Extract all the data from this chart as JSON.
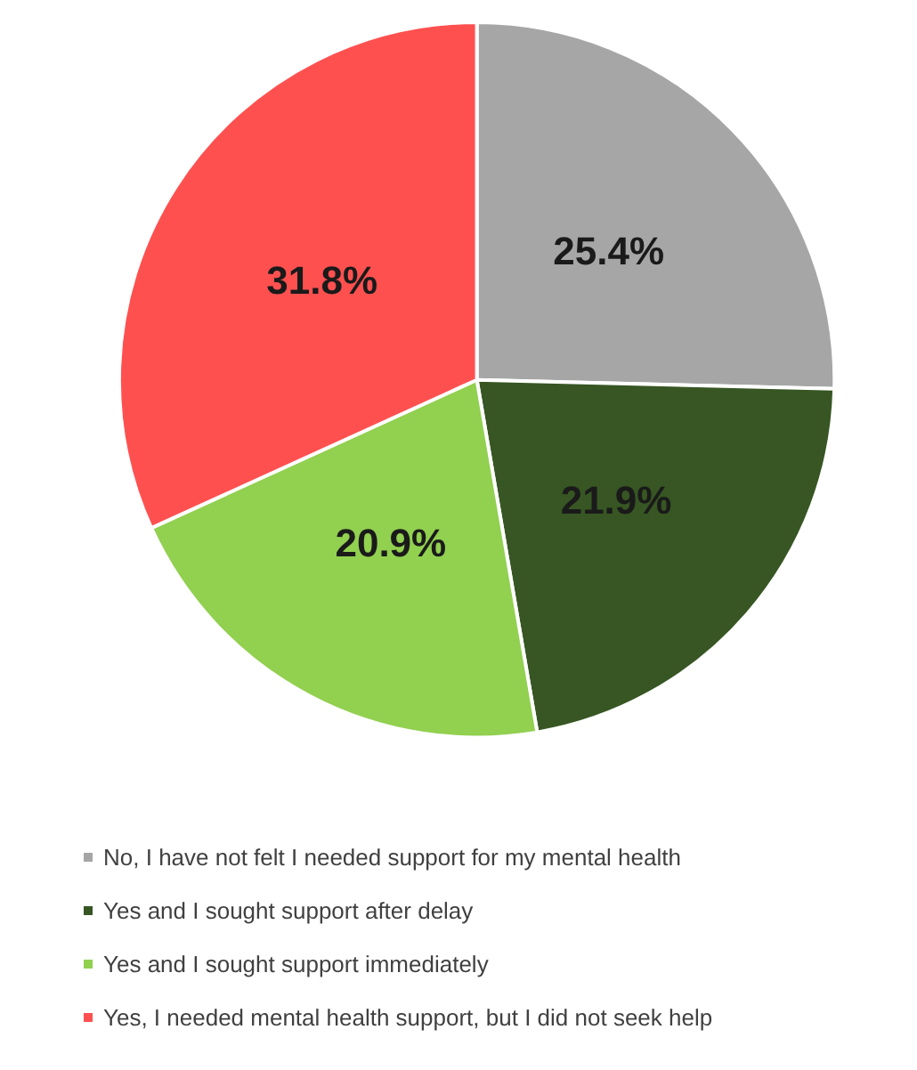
{
  "chart_data": {
    "type": "pie",
    "categories": [
      "No, I have not felt I needed support for my mental health",
      "Yes and I sought support after delay",
      "Yes and I sought support immediately",
      "Yes, I needed mental health support, but I did not seek help"
    ],
    "values": [
      25.4,
      21.9,
      20.9,
      31.8
    ],
    "colors": [
      "#a6a6a6",
      "#375623",
      "#92d050",
      "#ff5050"
    ],
    "value_labels": [
      "25.4%",
      "21.9%",
      "20.9%",
      "31.8%"
    ],
    "legend": "bottom"
  }
}
